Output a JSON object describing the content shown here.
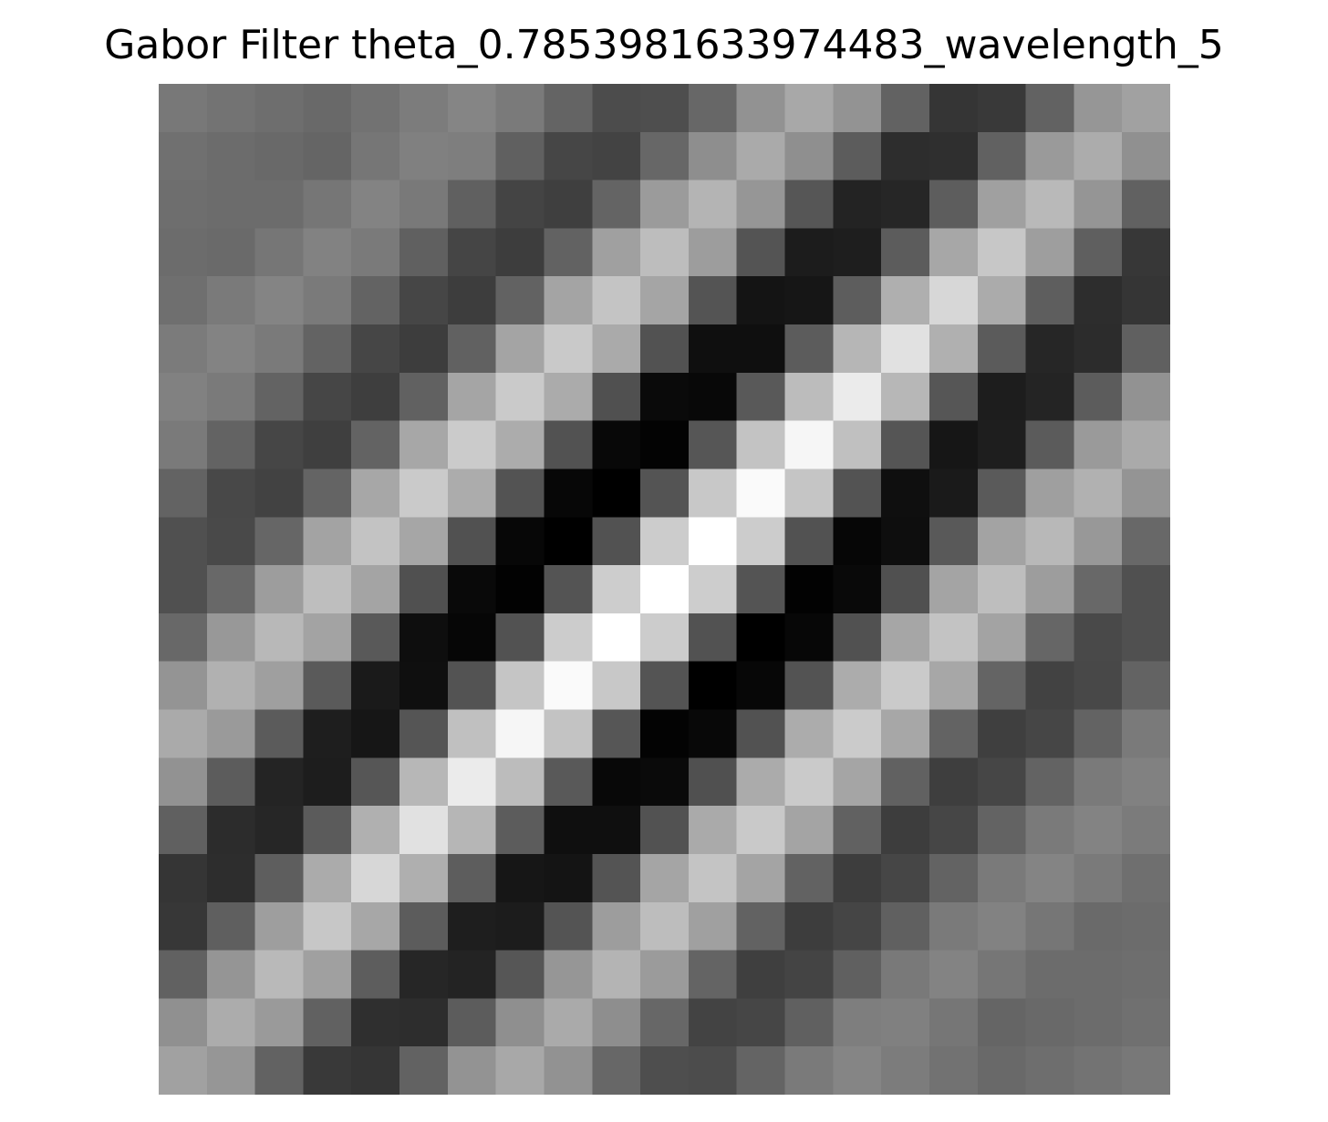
{
  "chart_data": {
    "type": "heatmap",
    "title": "Gabor Filter theta_0.7853981633974483_wavelength_5",
    "colormap": "gray",
    "axes_visible": false,
    "grid": false,
    "rows": 21,
    "cols": 21,
    "values": [
      [
        120,
        115,
        110,
        105,
        114,
        124,
        133,
        122,
        100,
        76,
        78,
        103,
        146,
        168,
        147,
        98,
        53,
        57,
        98,
        150,
        161
      ],
      [
        112,
        108,
        105,
        101,
        118,
        128,
        126,
        96,
        70,
        67,
        103,
        142,
        170,
        143,
        92,
        45,
        47,
        97,
        154,
        172,
        144
      ],
      [
        110,
        108,
        108,
        118,
        131,
        121,
        96,
        68,
        63,
        100,
        155,
        180,
        150,
        86,
        35,
        38,
        93,
        160,
        185,
        149,
        97
      ],
      [
        108,
        106,
        118,
        130,
        122,
        96,
        69,
        61,
        98,
        160,
        189,
        157,
        84,
        28,
        30,
        92,
        167,
        199,
        158,
        95,
        55
      ],
      [
        111,
        122,
        132,
        122,
        99,
        70,
        61,
        98,
        164,
        196,
        165,
        84,
        20,
        22,
        93,
        175,
        215,
        171,
        94,
        45,
        53
      ],
      [
        123,
        131,
        122,
        99,
        70,
        61,
        97,
        164,
        201,
        170,
        82,
        15,
        15,
        92,
        182,
        225,
        176,
        91,
        38,
        44,
        96
      ],
      [
        129,
        122,
        99,
        70,
        62,
        97,
        165,
        202,
        171,
        80,
        10,
        8,
        89,
        188,
        235,
        183,
        86,
        29,
        36,
        92,
        146
      ],
      [
        122,
        99,
        70,
        63,
        99,
        167,
        203,
        172,
        82,
        8,
        3,
        86,
        195,
        246,
        192,
        85,
        22,
        30,
        91,
        154,
        170
      ],
      [
        99,
        72,
        66,
        100,
        167,
        202,
        172,
        83,
        7,
        0,
        84,
        200,
        250,
        197,
        83,
        15,
        26,
        90,
        159,
        177,
        148
      ],
      [
        80,
        73,
        102,
        163,
        195,
        166,
        81,
        7,
        0,
        82,
        204,
        255,
        204,
        82,
        6,
        14,
        89,
        163,
        184,
        152,
        104
      ],
      [
        80,
        104,
        157,
        190,
        164,
        80,
        9,
        2,
        84,
        205,
        255,
        205,
        84,
        2,
        9,
        80,
        164,
        190,
        157,
        104,
        80
      ],
      [
        104,
        152,
        184,
        163,
        89,
        14,
        6,
        82,
        204,
        255,
        204,
        82,
        0,
        7,
        81,
        166,
        195,
        163,
        102,
        73,
        80
      ],
      [
        148,
        177,
        159,
        90,
        26,
        15,
        83,
        197,
        250,
        200,
        84,
        0,
        7,
        83,
        172,
        202,
        167,
        100,
        66,
        72,
        99
      ],
      [
        170,
        154,
        91,
        30,
        22,
        85,
        192,
        246,
        195,
        86,
        3,
        8,
        82,
        172,
        203,
        167,
        99,
        63,
        70,
        99,
        122
      ],
      [
        146,
        92,
        36,
        29,
        86,
        183,
        235,
        188,
        89,
        8,
        10,
        80,
        171,
        202,
        165,
        97,
        62,
        70,
        99,
        122,
        129
      ],
      [
        96,
        44,
        38,
        91,
        176,
        225,
        182,
        92,
        15,
        15,
        82,
        170,
        201,
        164,
        97,
        61,
        70,
        99,
        122,
        131,
        123
      ],
      [
        53,
        45,
        94,
        171,
        215,
        175,
        93,
        22,
        20,
        84,
        165,
        196,
        164,
        98,
        61,
        70,
        99,
        122,
        132,
        122,
        111
      ],
      [
        55,
        95,
        158,
        199,
        167,
        92,
        30,
        28,
        84,
        157,
        189,
        160,
        98,
        61,
        69,
        96,
        122,
        130,
        118,
        106,
        108
      ],
      [
        97,
        149,
        185,
        160,
        93,
        38,
        35,
        86,
        150,
        180,
        155,
        100,
        63,
        68,
        96,
        121,
        131,
        118,
        108,
        108,
        110
      ],
      [
        144,
        172,
        154,
        97,
        47,
        45,
        92,
        143,
        170,
        142,
        103,
        67,
        70,
        96,
        126,
        128,
        118,
        101,
        105,
        108,
        112
      ],
      [
        161,
        150,
        98,
        57,
        53,
        98,
        147,
        168,
        146,
        103,
        78,
        76,
        100,
        122,
        133,
        124,
        114,
        105,
        110,
        115,
        120
      ]
    ]
  }
}
